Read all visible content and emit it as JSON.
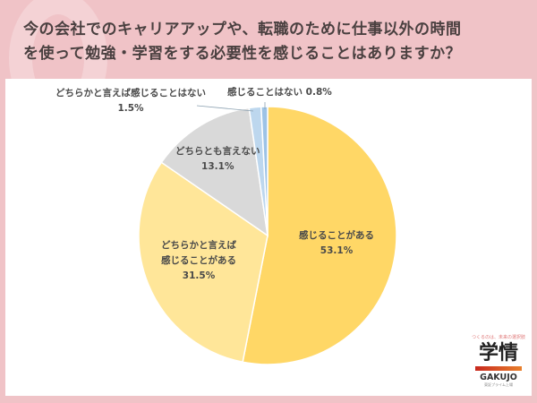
{
  "header": {
    "title_line1": "今の会社でのキャリアアップや、転職のために仕事以外の時間",
    "title_line2": "を使って勉強・学習をする必要性を感じることはありますか？"
  },
  "labels": {
    "s0_name": "感じることがある",
    "s0_pct": "53.1%",
    "s1_name1": "どちらかと言えば",
    "s1_name2": "感じることがある",
    "s1_pct": "31.5%",
    "s2_name": "どちらとも言えない",
    "s2_pct": "13.1%",
    "s3_name": "どちらかと言えば感じることはない",
    "s3_pct": "1.5%",
    "s4_text": "感じることはない 0.8%"
  },
  "logo": {
    "tagline": "つくるのは、未来の選択肢",
    "kanji": "学情",
    "name": "GAKUJO",
    "sub": "東証プライム上場"
  },
  "colors": {
    "background": "#f0c3c7",
    "s0": "#ffd766",
    "s1": "#ffe699",
    "s2": "#d9d9d9",
    "s3": "#bdd7ee",
    "s4": "#9dc3e6"
  },
  "chart_data": {
    "type": "pie",
    "title": "今の会社でのキャリアアップや、転職のために仕事以外の時間を使って勉強・学習をする必要性を感じることはありますか？",
    "categories": [
      "感じることがある",
      "どちらかと言えば感じることがある",
      "どちらとも言えない",
      "どちらかと言えば感じることはない",
      "感じることはない"
    ],
    "values": [
      53.1,
      31.5,
      13.1,
      1.5,
      0.8
    ],
    "unit": "%",
    "start_angle": "12 o'clock, clockwise",
    "legend": "none (data labels on slices)"
  }
}
